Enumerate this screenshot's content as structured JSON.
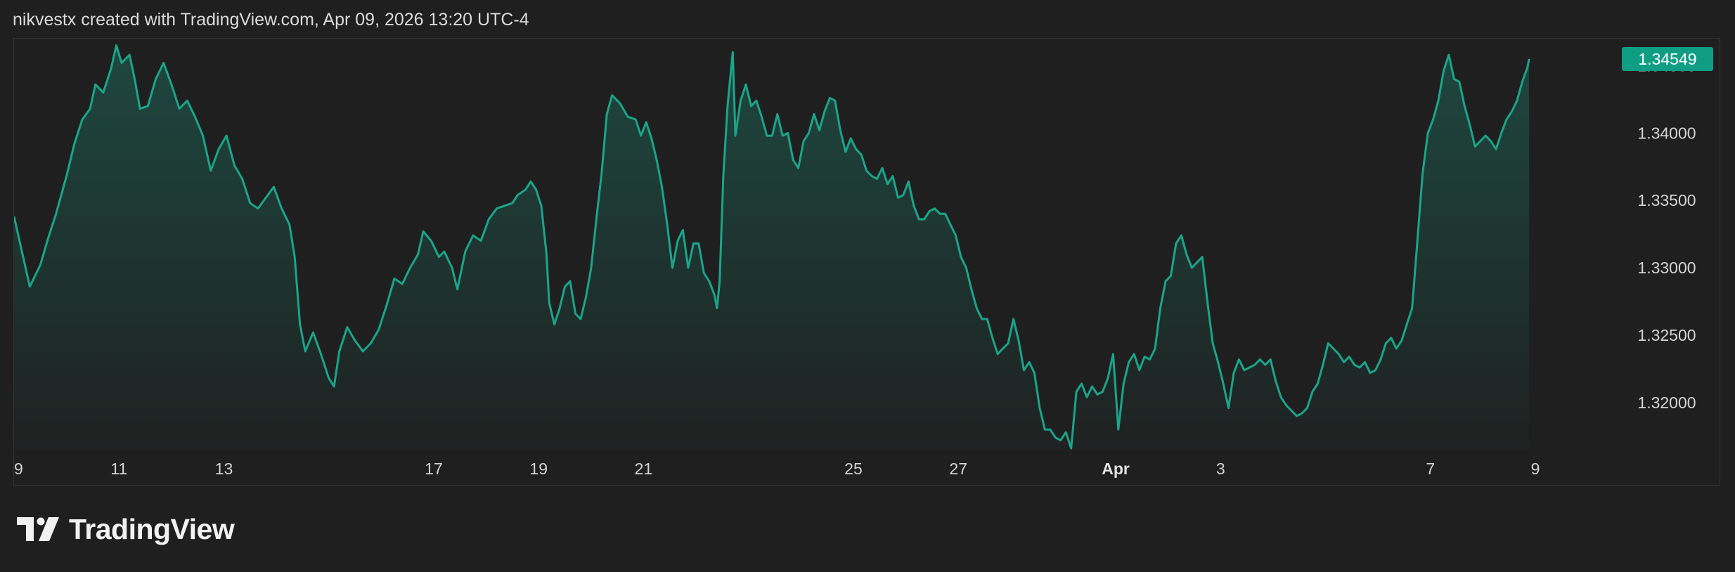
{
  "header": {
    "caption": "nikvestx created with TradingView.com, Apr 09, 2026 13:20 UTC-4"
  },
  "brand": {
    "name": "TradingView",
    "icon": "tradingview-logo-icon"
  },
  "colors": {
    "background": "#1f1f1f",
    "line": "#1aa58a",
    "price_tag": "#0f9d84",
    "text": "#d4d4d4"
  },
  "chart_data": {
    "type": "area",
    "title": "",
    "xlabel": "",
    "ylabel": "",
    "grid": false,
    "legend": "none",
    "last_price_label": "1.34549",
    "x_ticks": [
      {
        "label": "9",
        "day": 0,
        "bold": false
      },
      {
        "label": "11",
        "day": 2,
        "bold": false
      },
      {
        "label": "13",
        "day": 4,
        "bold": false
      },
      {
        "label": "17",
        "day": 8,
        "bold": false
      },
      {
        "label": "19",
        "day": 10,
        "bold": false
      },
      {
        "label": "21",
        "day": 12,
        "bold": false
      },
      {
        "label": "25",
        "day": 16,
        "bold": false
      },
      {
        "label": "27",
        "day": 18,
        "bold": false
      },
      {
        "label": "Apr",
        "day": 21,
        "bold": true
      },
      {
        "label": "3",
        "day": 23,
        "bold": false
      },
      {
        "label": "7",
        "day": 27,
        "bold": false
      },
      {
        "label": "9",
        "day": 29,
        "bold": false
      }
    ],
    "y_ticks": [
      {
        "label": "1.32000",
        "value": 1.32
      },
      {
        "label": "1.32500",
        "value": 1.325
      },
      {
        "label": "1.33000",
        "value": 1.33
      },
      {
        "label": "1.33500",
        "value": 1.335
      },
      {
        "label": "1.34000",
        "value": 1.34
      },
      {
        "label": "1.34500",
        "value": 1.345
      }
    ],
    "ylim": [
      1.3165,
      1.347
    ],
    "xlim": [
      0,
      30.5
    ],
    "series": [
      {
        "values": [
          [
            0.0,
            1.3338
          ],
          [
            0.15,
            1.3312
          ],
          [
            0.3,
            1.3286
          ],
          [
            0.5,
            1.3302
          ],
          [
            0.65,
            1.3322
          ],
          [
            0.8,
            1.334
          ],
          [
            1.0,
            1.3368
          ],
          [
            1.15,
            1.3392
          ],
          [
            1.3,
            1.341
          ],
          [
            1.45,
            1.3418
          ],
          [
            1.55,
            1.3436
          ],
          [
            1.7,
            1.343
          ],
          [
            1.85,
            1.3448
          ],
          [
            1.95,
            1.3465
          ],
          [
            2.05,
            1.3452
          ],
          [
            2.2,
            1.3458
          ],
          [
            2.3,
            1.344
          ],
          [
            2.4,
            1.3418
          ],
          [
            2.55,
            1.342
          ],
          [
            2.7,
            1.344
          ],
          [
            2.85,
            1.3452
          ],
          [
            3.0,
            1.3436
          ],
          [
            3.15,
            1.3418
          ],
          [
            3.3,
            1.3424
          ],
          [
            3.45,
            1.3412
          ],
          [
            3.6,
            1.3398
          ],
          [
            3.75,
            1.3372
          ],
          [
            3.9,
            1.3388
          ],
          [
            4.05,
            1.3398
          ],
          [
            4.2,
            1.3376
          ],
          [
            4.35,
            1.3366
          ],
          [
            4.5,
            1.3348
          ],
          [
            4.65,
            1.3344
          ],
          [
            4.8,
            1.3352
          ],
          [
            4.95,
            1.336
          ],
          [
            5.1,
            1.3344
          ],
          [
            5.25,
            1.3332
          ],
          [
            5.35,
            1.3308
          ],
          [
            5.45,
            1.3258
          ],
          [
            5.55,
            1.3238
          ],
          [
            5.7,
            1.3252
          ],
          [
            5.85,
            1.3236
          ],
          [
            6.0,
            1.3218
          ],
          [
            6.1,
            1.3212
          ],
          [
            6.2,
            1.3238
          ],
          [
            6.35,
            1.3256
          ],
          [
            6.5,
            1.3246
          ],
          [
            6.65,
            1.3238
          ],
          [
            6.8,
            1.3244
          ],
          [
            6.95,
            1.3254
          ],
          [
            7.1,
            1.3272
          ],
          [
            7.25,
            1.3292
          ],
          [
            7.4,
            1.3288
          ],
          [
            7.55,
            1.33
          ],
          [
            7.7,
            1.331
          ],
          [
            7.8,
            1.3327
          ],
          [
            7.95,
            1.332
          ],
          [
            8.1,
            1.3308
          ],
          [
            8.2,
            1.3312
          ],
          [
            8.35,
            1.33
          ],
          [
            8.45,
            1.3284
          ],
          [
            8.6,
            1.3312
          ],
          [
            8.75,
            1.3324
          ],
          [
            8.9,
            1.332
          ],
          [
            9.05,
            1.3336
          ],
          [
            9.2,
            1.3344
          ],
          [
            9.35,
            1.3346
          ],
          [
            9.5,
            1.3348
          ],
          [
            9.6,
            1.3354
          ],
          [
            9.75,
            1.3358
          ],
          [
            9.85,
            1.3364
          ],
          [
            9.95,
            1.3358
          ],
          [
            10.05,
            1.3346
          ],
          [
            10.15,
            1.331
          ],
          [
            10.2,
            1.3274
          ],
          [
            10.3,
            1.3258
          ],
          [
            10.4,
            1.327
          ],
          [
            10.5,
            1.3286
          ],
          [
            10.6,
            1.329
          ],
          [
            10.7,
            1.3266
          ],
          [
            10.8,
            1.3262
          ],
          [
            10.9,
            1.3278
          ],
          [
            11.0,
            1.33
          ],
          [
            11.1,
            1.3336
          ],
          [
            11.2,
            1.337
          ],
          [
            11.3,
            1.3414
          ],
          [
            11.4,
            1.3428
          ],
          [
            11.55,
            1.3422
          ],
          [
            11.7,
            1.3412
          ],
          [
            11.85,
            1.341
          ],
          [
            11.95,
            1.3398
          ],
          [
            12.05,
            1.3408
          ],
          [
            12.15,
            1.3396
          ],
          [
            12.25,
            1.338
          ],
          [
            12.35,
            1.336
          ],
          [
            12.45,
            1.3332
          ],
          [
            12.55,
            1.33
          ],
          [
            12.65,
            1.332
          ],
          [
            12.75,
            1.3328
          ],
          [
            12.85,
            1.33
          ],
          [
            12.95,
            1.3318
          ],
          [
            13.05,
            1.3318
          ],
          [
            13.15,
            1.3296
          ],
          [
            13.25,
            1.329
          ],
          [
            13.35,
            1.328
          ],
          [
            13.4,
            1.327
          ],
          [
            13.45,
            1.329
          ],
          [
            13.52,
            1.3368
          ],
          [
            13.6,
            1.342
          ],
          [
            13.7,
            1.346
          ],
          [
            13.75,
            1.3398
          ],
          [
            13.85,
            1.3424
          ],
          [
            13.95,
            1.3436
          ],
          [
            14.05,
            1.342
          ],
          [
            14.15,
            1.3424
          ],
          [
            14.25,
            1.3412
          ],
          [
            14.35,
            1.3398
          ],
          [
            14.45,
            1.3398
          ],
          [
            14.55,
            1.3414
          ],
          [
            14.65,
            1.3398
          ],
          [
            14.75,
            1.34
          ],
          [
            14.85,
            1.338
          ],
          [
            14.95,
            1.3374
          ],
          [
            15.05,
            1.3394
          ],
          [
            15.15,
            1.34
          ],
          [
            15.25,
            1.3414
          ],
          [
            15.35,
            1.3402
          ],
          [
            15.45,
            1.3416
          ],
          [
            15.55,
            1.3426
          ],
          [
            15.65,
            1.3424
          ],
          [
            15.75,
            1.3402
          ],
          [
            15.85,
            1.3386
          ],
          [
            15.95,
            1.3396
          ],
          [
            16.05,
            1.3388
          ],
          [
            16.15,
            1.3384
          ],
          [
            16.25,
            1.3372
          ],
          [
            16.35,
            1.3368
          ],
          [
            16.45,
            1.3366
          ],
          [
            16.55,
            1.3374
          ],
          [
            16.65,
            1.3362
          ],
          [
            16.75,
            1.3368
          ],
          [
            16.85,
            1.3352
          ],
          [
            16.95,
            1.3354
          ],
          [
            17.05,
            1.3364
          ],
          [
            17.15,
            1.3346
          ],
          [
            17.25,
            1.3336
          ],
          [
            17.35,
            1.3336
          ],
          [
            17.45,
            1.3342
          ],
          [
            17.55,
            1.3344
          ],
          [
            17.65,
            1.334
          ],
          [
            17.75,
            1.334
          ],
          [
            17.85,
            1.3332
          ],
          [
            17.95,
            1.3324
          ],
          [
            18.05,
            1.3308
          ],
          [
            18.15,
            1.33
          ],
          [
            18.25,
            1.3284
          ],
          [
            18.35,
            1.327
          ],
          [
            18.45,
            1.3262
          ],
          [
            18.55,
            1.3262
          ],
          [
            18.65,
            1.3248
          ],
          [
            18.75,
            1.3236
          ],
          [
            18.85,
            1.324
          ],
          [
            18.95,
            1.3244
          ],
          [
            19.05,
            1.3262
          ],
          [
            19.15,
            1.3246
          ],
          [
            19.25,
            1.3224
          ],
          [
            19.35,
            1.323
          ],
          [
            19.45,
            1.3222
          ],
          [
            19.55,
            1.3196
          ],
          [
            19.65,
            1.318
          ],
          [
            19.75,
            1.318
          ],
          [
            19.85,
            1.3174
          ],
          [
            19.95,
            1.3172
          ],
          [
            20.05,
            1.3178
          ],
          [
            20.15,
            1.3166
          ],
          [
            20.25,
            1.3208
          ],
          [
            20.35,
            1.3214
          ],
          [
            20.45,
            1.3204
          ],
          [
            20.55,
            1.3212
          ],
          [
            20.65,
            1.3206
          ],
          [
            20.75,
            1.3208
          ],
          [
            20.85,
            1.3218
          ],
          [
            20.95,
            1.3236
          ],
          [
            21.05,
            1.318
          ],
          [
            21.15,
            1.3214
          ],
          [
            21.25,
            1.323
          ],
          [
            21.35,
            1.3236
          ],
          [
            21.45,
            1.3224
          ],
          [
            21.55,
            1.3234
          ],
          [
            21.65,
            1.3232
          ],
          [
            21.75,
            1.324
          ],
          [
            21.85,
            1.327
          ],
          [
            21.95,
            1.329
          ],
          [
            22.05,
            1.3294
          ],
          [
            22.15,
            1.3318
          ],
          [
            22.25,
            1.3324
          ],
          [
            22.35,
            1.331
          ],
          [
            22.45,
            1.33
          ],
          [
            22.55,
            1.3304
          ],
          [
            22.65,
            1.3308
          ],
          [
            22.75,
            1.3274
          ],
          [
            22.85,
            1.3244
          ],
          [
            22.95,
            1.323
          ],
          [
            23.05,
            1.3214
          ],
          [
            23.15,
            1.3196
          ],
          [
            23.25,
            1.3222
          ],
          [
            23.35,
            1.3232
          ],
          [
            23.45,
            1.3224
          ],
          [
            23.55,
            1.3226
          ],
          [
            23.65,
            1.3228
          ],
          [
            23.75,
            1.3232
          ],
          [
            23.85,
            1.3228
          ],
          [
            23.95,
            1.3232
          ],
          [
            24.05,
            1.3216
          ],
          [
            24.15,
            1.3204
          ],
          [
            24.25,
            1.3198
          ],
          [
            24.35,
            1.3194
          ],
          [
            24.45,
            1.319
          ],
          [
            24.55,
            1.3192
          ],
          [
            24.65,
            1.3196
          ],
          [
            24.75,
            1.3208
          ],
          [
            24.85,
            1.3214
          ],
          [
            24.95,
            1.3228
          ],
          [
            25.05,
            1.3244
          ],
          [
            25.15,
            1.324
          ],
          [
            25.25,
            1.3236
          ],
          [
            25.35,
            1.323
          ],
          [
            25.45,
            1.3234
          ],
          [
            25.55,
            1.3228
          ],
          [
            25.65,
            1.3226
          ],
          [
            25.75,
            1.323
          ],
          [
            25.85,
            1.3222
          ],
          [
            25.95,
            1.3224
          ],
          [
            26.05,
            1.3232
          ],
          [
            26.15,
            1.3244
          ],
          [
            26.25,
            1.3248
          ],
          [
            26.35,
            1.324
          ],
          [
            26.45,
            1.3246
          ],
          [
            26.55,
            1.3258
          ],
          [
            26.65,
            1.327
          ],
          [
            26.75,
            1.332
          ],
          [
            26.85,
            1.337
          ],
          [
            26.95,
            1.34
          ],
          [
            27.05,
            1.341
          ],
          [
            27.15,
            1.3424
          ],
          [
            27.25,
            1.3446
          ],
          [
            27.35,
            1.3458
          ],
          [
            27.45,
            1.344
          ],
          [
            27.55,
            1.3438
          ],
          [
            27.65,
            1.342
          ],
          [
            27.75,
            1.3406
          ],
          [
            27.85,
            1.339
          ],
          [
            27.95,
            1.3394
          ],
          [
            28.05,
            1.3398
          ],
          [
            28.15,
            1.3394
          ],
          [
            28.25,
            1.3388
          ],
          [
            28.35,
            1.34
          ],
          [
            28.45,
            1.341
          ],
          [
            28.55,
            1.3416
          ],
          [
            28.65,
            1.3424
          ],
          [
            28.75,
            1.3438
          ],
          [
            28.85,
            1.3449
          ],
          [
            28.88,
            1.34549
          ]
        ]
      }
    ]
  }
}
